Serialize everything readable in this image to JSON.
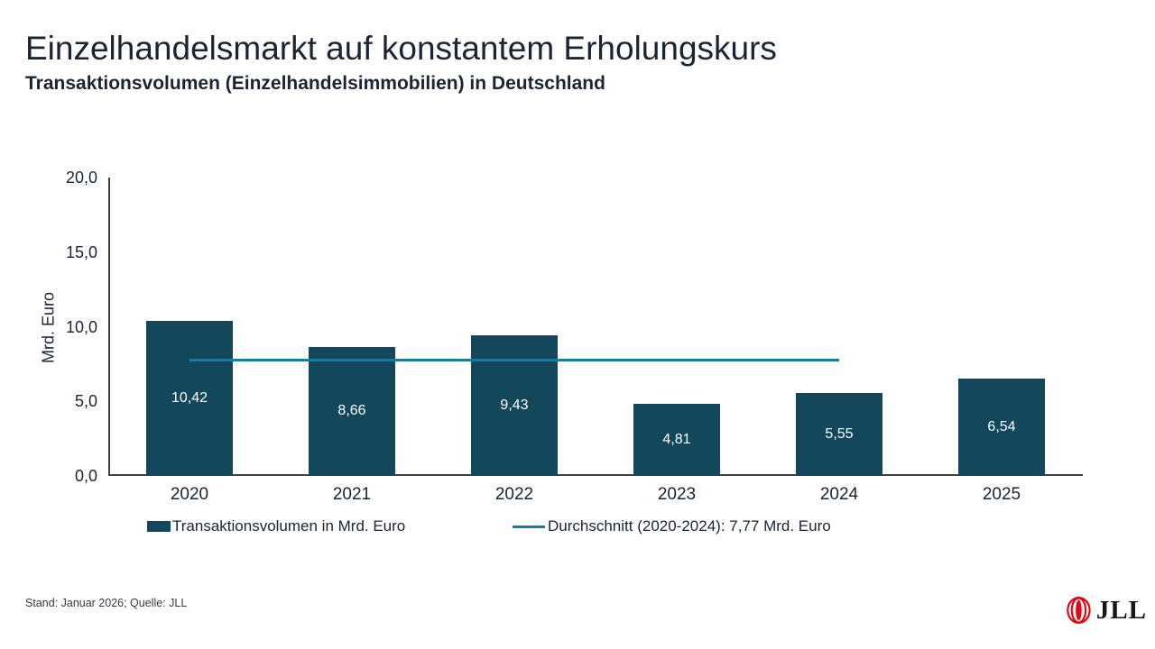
{
  "chart_data": {
    "type": "bar",
    "title": "Einzelhandelsmarkt auf konstantem Erholungskurs",
    "subtitle": "Transaktionsvolumen (Einzelhandelsimmobilien) in Deutschland",
    "categories": [
      "2020",
      "2021",
      "2022",
      "2023",
      "2024",
      "2025"
    ],
    "series": [
      {
        "name": "Transaktionsvolumen in Mrd. Euro",
        "values": [
          10.42,
          8.66,
          9.43,
          4.81,
          5.55,
          6.54
        ],
        "value_labels": [
          "10,42",
          "8,66",
          "9,43",
          "4,81",
          "5,55",
          "6,54"
        ],
        "color": "#13485c"
      }
    ],
    "average_line": {
      "name": "Durchschnitt (2020-2024): 7,77 Mrd. Euro",
      "value": 7.77,
      "from_category_index": 0,
      "to_category_index": 4,
      "color": "#1a7aa2"
    },
    "ylabel": "Mrd. Euro",
    "ylim": [
      0,
      20
    ],
    "yticks": [
      {
        "value": 0,
        "label": "0,0"
      },
      {
        "value": 5,
        "label": "5,0"
      },
      {
        "value": 10,
        "label": "10,0"
      },
      {
        "value": 15,
        "label": "15,0"
      },
      {
        "value": 20,
        "label": "20,0"
      }
    ],
    "grid": false,
    "legend_position": "bottom"
  },
  "footer": {
    "text": "Stand: Januar 2026; Quelle: JLL"
  },
  "logo": {
    "text": "JLL",
    "mark": "jll-rings-mark",
    "mark_color": "#e30613"
  }
}
